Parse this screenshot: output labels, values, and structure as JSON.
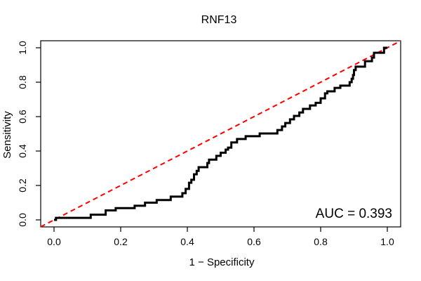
{
  "title": "RNF13",
  "annotation": {
    "auc_label": "AUC = 0.393",
    "auc_value": 0.393
  },
  "axes": {
    "x": {
      "label": "1 − Specificity",
      "ticks": [
        "0.0",
        "0.2",
        "0.4",
        "0.6",
        "0.8",
        "1.0"
      ],
      "tick_values": [
        0,
        0.2,
        0.4,
        0.6,
        0.8,
        1.0
      ],
      "range": [
        0,
        1
      ]
    },
    "y": {
      "label": "Sensitivity",
      "ticks": [
        "0.0",
        "0.2",
        "0.4",
        "0.6",
        "0.8",
        "1.0"
      ],
      "tick_values": [
        0,
        0.2,
        0.4,
        0.6,
        0.8,
        1.0
      ],
      "range": [
        0,
        1
      ]
    }
  },
  "colors": {
    "roc_curve": "#000000",
    "diagonal": "#FF0000",
    "axis": "#000000",
    "background": "#FFFFFF"
  },
  "chart_data": {
    "type": "line",
    "title": "RNF13",
    "xlabel": "1 − Specificity",
    "ylabel": "Sensitivity",
    "xlim": [
      0,
      1
    ],
    "ylim": [
      0,
      1
    ],
    "grid": false,
    "legend": "none",
    "auc": 0.393,
    "series": [
      {
        "name": "ROC curve",
        "style": "step-solid",
        "color": "#000000",
        "line_width": 3,
        "points": [
          [
            0.0,
            0.0
          ],
          [
            0.006,
            0.012
          ],
          [
            0.11,
            0.03
          ],
          [
            0.155,
            0.055
          ],
          [
            0.185,
            0.068
          ],
          [
            0.242,
            0.082
          ],
          [
            0.273,
            0.1
          ],
          [
            0.308,
            0.115
          ],
          [
            0.35,
            0.135
          ],
          [
            0.385,
            0.155
          ],
          [
            0.395,
            0.18
          ],
          [
            0.405,
            0.216
          ],
          [
            0.412,
            0.233
          ],
          [
            0.42,
            0.265
          ],
          [
            0.428,
            0.285
          ],
          [
            0.434,
            0.306
          ],
          [
            0.46,
            0.33
          ],
          [
            0.465,
            0.35
          ],
          [
            0.487,
            0.372
          ],
          [
            0.5,
            0.39
          ],
          [
            0.515,
            0.408
          ],
          [
            0.522,
            0.42
          ],
          [
            0.532,
            0.45
          ],
          [
            0.549,
            0.47
          ],
          [
            0.575,
            0.486
          ],
          [
            0.617,
            0.502
          ],
          [
            0.67,
            0.522
          ],
          [
            0.684,
            0.543
          ],
          [
            0.694,
            0.563
          ],
          [
            0.708,
            0.584
          ],
          [
            0.72,
            0.604
          ],
          [
            0.736,
            0.624
          ],
          [
            0.747,
            0.645
          ],
          [
            0.768,
            0.665
          ],
          [
            0.785,
            0.68
          ],
          [
            0.8,
            0.706
          ],
          [
            0.813,
            0.735
          ],
          [
            0.82,
            0.747
          ],
          [
            0.842,
            0.767
          ],
          [
            0.859,
            0.78
          ],
          [
            0.887,
            0.8
          ],
          [
            0.893,
            0.82
          ],
          [
            0.897,
            0.842
          ],
          [
            0.9,
            0.87
          ],
          [
            0.905,
            0.89
          ],
          [
            0.933,
            0.922
          ],
          [
            0.954,
            0.943
          ],
          [
            0.96,
            0.971
          ],
          [
            0.99,
            1.0
          ],
          [
            1.0,
            1.0
          ]
        ]
      },
      {
        "name": "Reference diagonal",
        "style": "dashed",
        "color": "#FF0000",
        "line_width": 2,
        "points": [
          [
            0,
            0
          ],
          [
            1,
            1
          ]
        ]
      }
    ]
  }
}
